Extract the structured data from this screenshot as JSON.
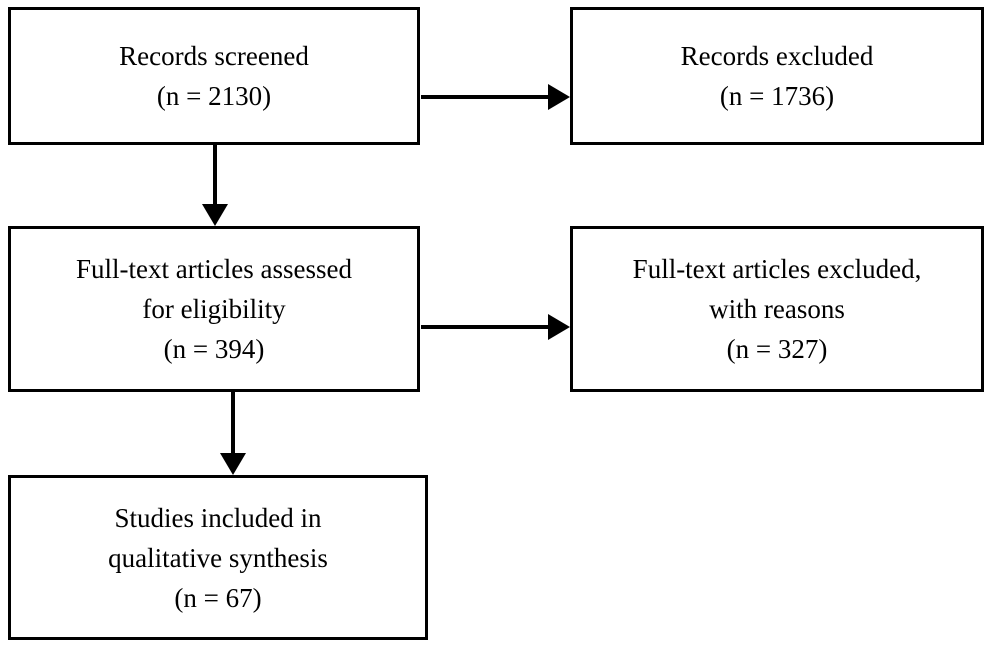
{
  "diagram": {
    "type": "flowchart",
    "boxes": {
      "records_screened": {
        "line1": "Records screened",
        "line2": "(n = 2130)"
      },
      "records_excluded": {
        "line1": "Records excluded",
        "line2": "(n = 1736)"
      },
      "fulltext_assessed": {
        "line1": "Full-text articles assessed",
        "line2": "for eligibility",
        "line3": "(n = 394)"
      },
      "fulltext_excluded": {
        "line1": "Full-text articles excluded,",
        "line2": "with reasons",
        "line3": "(n = 327)"
      },
      "studies_included": {
        "line1": "Studies included in",
        "line2": "qualitative synthesis",
        "line3": "(n = 67)"
      }
    },
    "colors": {
      "border": "#000000",
      "background": "#ffffff",
      "text": "#000000"
    }
  }
}
